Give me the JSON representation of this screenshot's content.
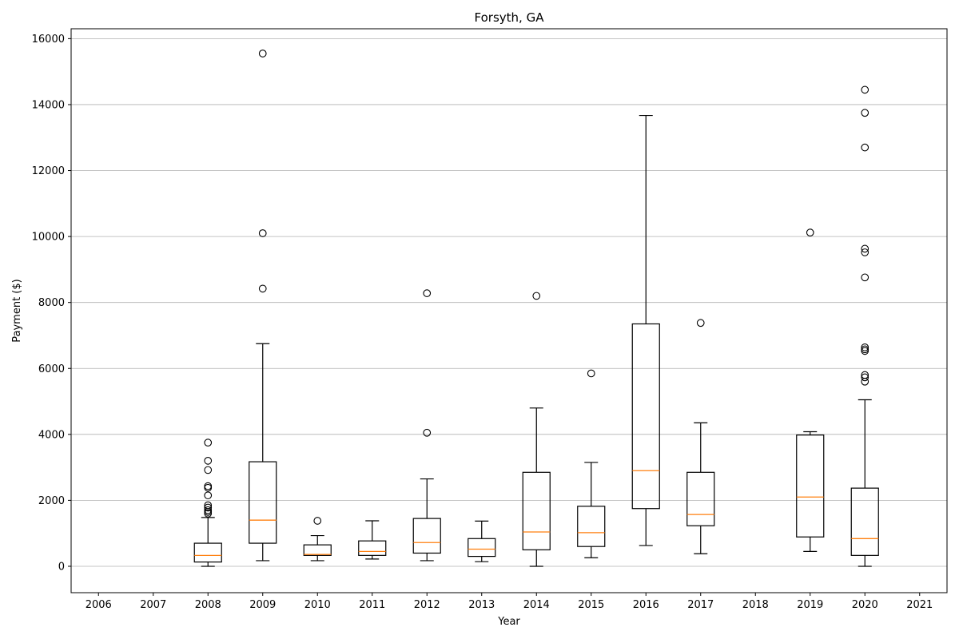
{
  "chart_data": {
    "type": "box",
    "title": "Forsyth, GA",
    "xlabel": "Year",
    "ylabel": "Payment ($)",
    "ylim": [
      -800,
      16300
    ],
    "yticks": [
      0,
      2000,
      4000,
      6000,
      8000,
      10000,
      12000,
      14000,
      16000
    ],
    "y_grid": true,
    "categories": [
      "2006",
      "2007",
      "2008",
      "2009",
      "2010",
      "2011",
      "2012",
      "2013",
      "2014",
      "2015",
      "2016",
      "2017",
      "2018",
      "2019",
      "2020",
      "2021"
    ],
    "boxes": [
      {
        "year": "2008",
        "whisker_low": 0,
        "q1": 130,
        "median": 330,
        "q3": 700,
        "whisker_high": 1480,
        "outliers": [
          1600,
          1650,
          1700,
          1780,
          1850,
          2150,
          2380,
          2430,
          2920,
          3200,
          3750
        ]
      },
      {
        "year": "2009",
        "whisker_low": 170,
        "q1": 700,
        "median": 1400,
        "q3": 3170,
        "whisker_high": 6750,
        "outliers": [
          8420,
          10100,
          15550
        ]
      },
      {
        "year": "2010",
        "whisker_low": 170,
        "q1": 330,
        "median": 360,
        "q3": 650,
        "whisker_high": 930,
        "outliers": [
          1380
        ]
      },
      {
        "year": "2011",
        "whisker_low": 220,
        "q1": 330,
        "median": 450,
        "q3": 770,
        "whisker_high": 1380,
        "outliers": []
      },
      {
        "year": "2012",
        "whisker_low": 170,
        "q1": 400,
        "median": 720,
        "q3": 1450,
        "whisker_high": 2650,
        "outliers": [
          4050,
          8280
        ]
      },
      {
        "year": "2013",
        "whisker_low": 140,
        "q1": 300,
        "median": 520,
        "q3": 840,
        "whisker_high": 1370,
        "outliers": []
      },
      {
        "year": "2014",
        "whisker_low": 0,
        "q1": 500,
        "median": 1040,
        "q3": 2850,
        "whisker_high": 4800,
        "outliers": [
          8200
        ]
      },
      {
        "year": "2015",
        "whisker_low": 260,
        "q1": 600,
        "median": 1020,
        "q3": 1820,
        "whisker_high": 3150,
        "outliers": [
          5850
        ]
      },
      {
        "year": "2016",
        "whisker_low": 630,
        "q1": 1750,
        "median": 2900,
        "q3": 7350,
        "whisker_high": 13670,
        "outliers": []
      },
      {
        "year": "2017",
        "whisker_low": 380,
        "q1": 1230,
        "median": 1570,
        "q3": 2850,
        "whisker_high": 4350,
        "outliers": [
          7380
        ]
      },
      {
        "year": "2019",
        "whisker_low": 450,
        "q1": 890,
        "median": 2100,
        "q3": 3980,
        "whisker_high": 4080,
        "outliers": [
          10120
        ]
      },
      {
        "year": "2020",
        "whisker_low": 0,
        "q1": 330,
        "median": 840,
        "q3": 2370,
        "whisker_high": 5050,
        "outliers": [
          5600,
          5730,
          5800,
          6530,
          6580,
          6640,
          8760,
          9520,
          9630,
          12700,
          13750,
          14450
        ]
      }
    ],
    "box_color": "#000000",
    "median_color": "#ff7f0e",
    "grid_color": "#b0b0b0"
  }
}
